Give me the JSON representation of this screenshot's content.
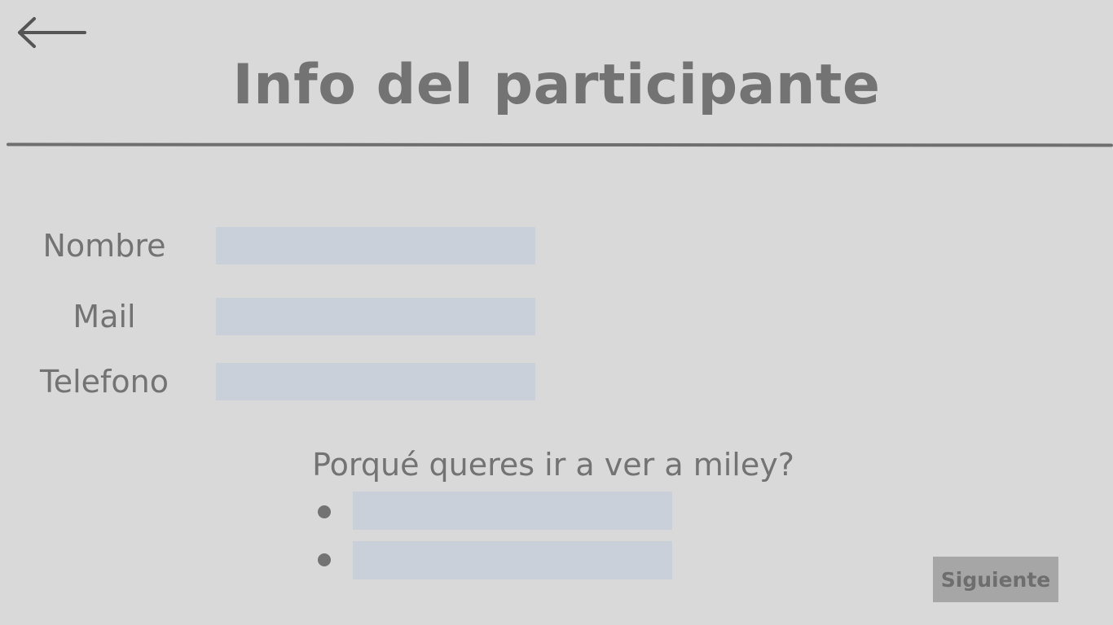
{
  "header": {
    "back_icon": "arrow-left-icon",
    "title": "Info del participante"
  },
  "form": {
    "fields": [
      {
        "label": "Nombre",
        "value": "",
        "placeholder": ""
      },
      {
        "label": "Mail",
        "value": "",
        "placeholder": ""
      },
      {
        "label": "Telefono",
        "value": "",
        "placeholder": ""
      }
    ],
    "question": "Porqué queres ir a ver a miley?",
    "answers": [
      {
        "value": "",
        "placeholder": ""
      },
      {
        "value": "",
        "placeholder": ""
      }
    ]
  },
  "actions": {
    "next_label": "Siguiente"
  },
  "colors": {
    "background": "#d9d9d9",
    "text": "#737373",
    "input": "#c9d0d9",
    "button": "#a6a6a6"
  }
}
